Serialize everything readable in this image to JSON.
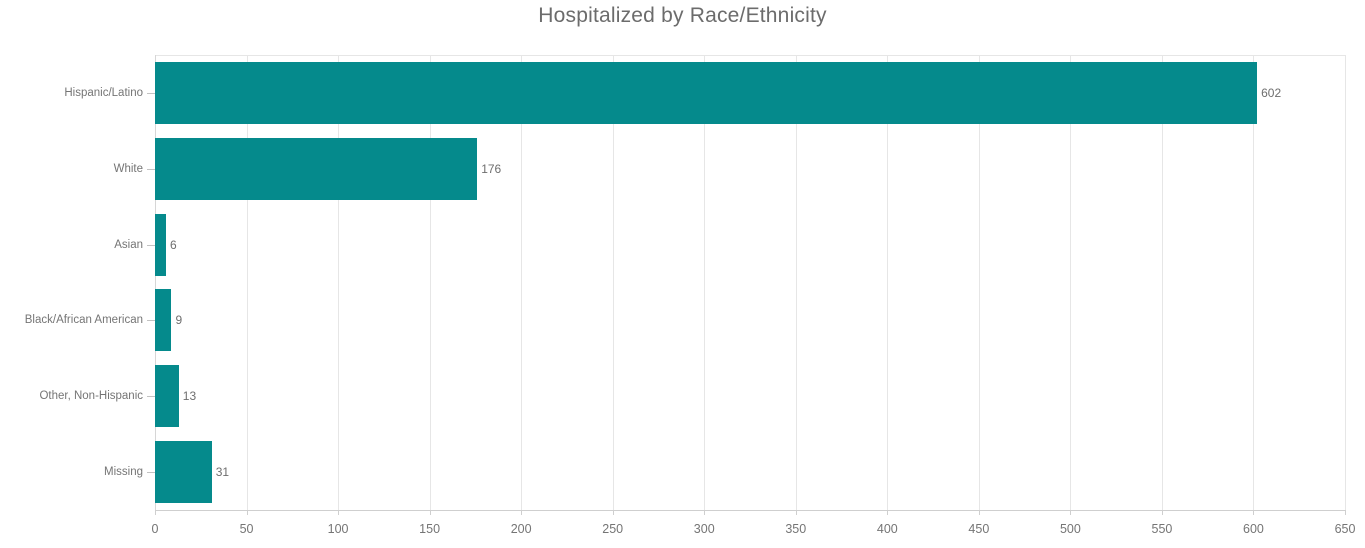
{
  "title": "Hospitalized by Race/Ethnicity",
  "colors": {
    "bar": "#058a8c",
    "title_text": "#6c6c6c",
    "label_text": "#757575",
    "gridline": "#e6e6e6",
    "axis": "#cfcfcf",
    "background": "#ffffff"
  },
  "chart_data": {
    "type": "bar",
    "orientation": "horizontal",
    "title": "Hospitalized by Race/Ethnicity",
    "categories": [
      "Hispanic/Latino",
      "White",
      "Asian",
      "Black/African American",
      "Other, Non-Hispanic",
      "Missing"
    ],
    "values": [
      602,
      176,
      6,
      9,
      13,
      31
    ],
    "value_labels": [
      "602",
      "176",
      "6",
      "9",
      "13",
      "31"
    ],
    "xlabel": "",
    "ylabel": "",
    "xlim": [
      0,
      650
    ],
    "x_tick_step": 50,
    "x_ticks": [
      0,
      50,
      100,
      150,
      200,
      250,
      300,
      350,
      400,
      450,
      500,
      550,
      600,
      650
    ],
    "grid": "vertical",
    "legend": "none",
    "bar_color": "#058a8c"
  }
}
